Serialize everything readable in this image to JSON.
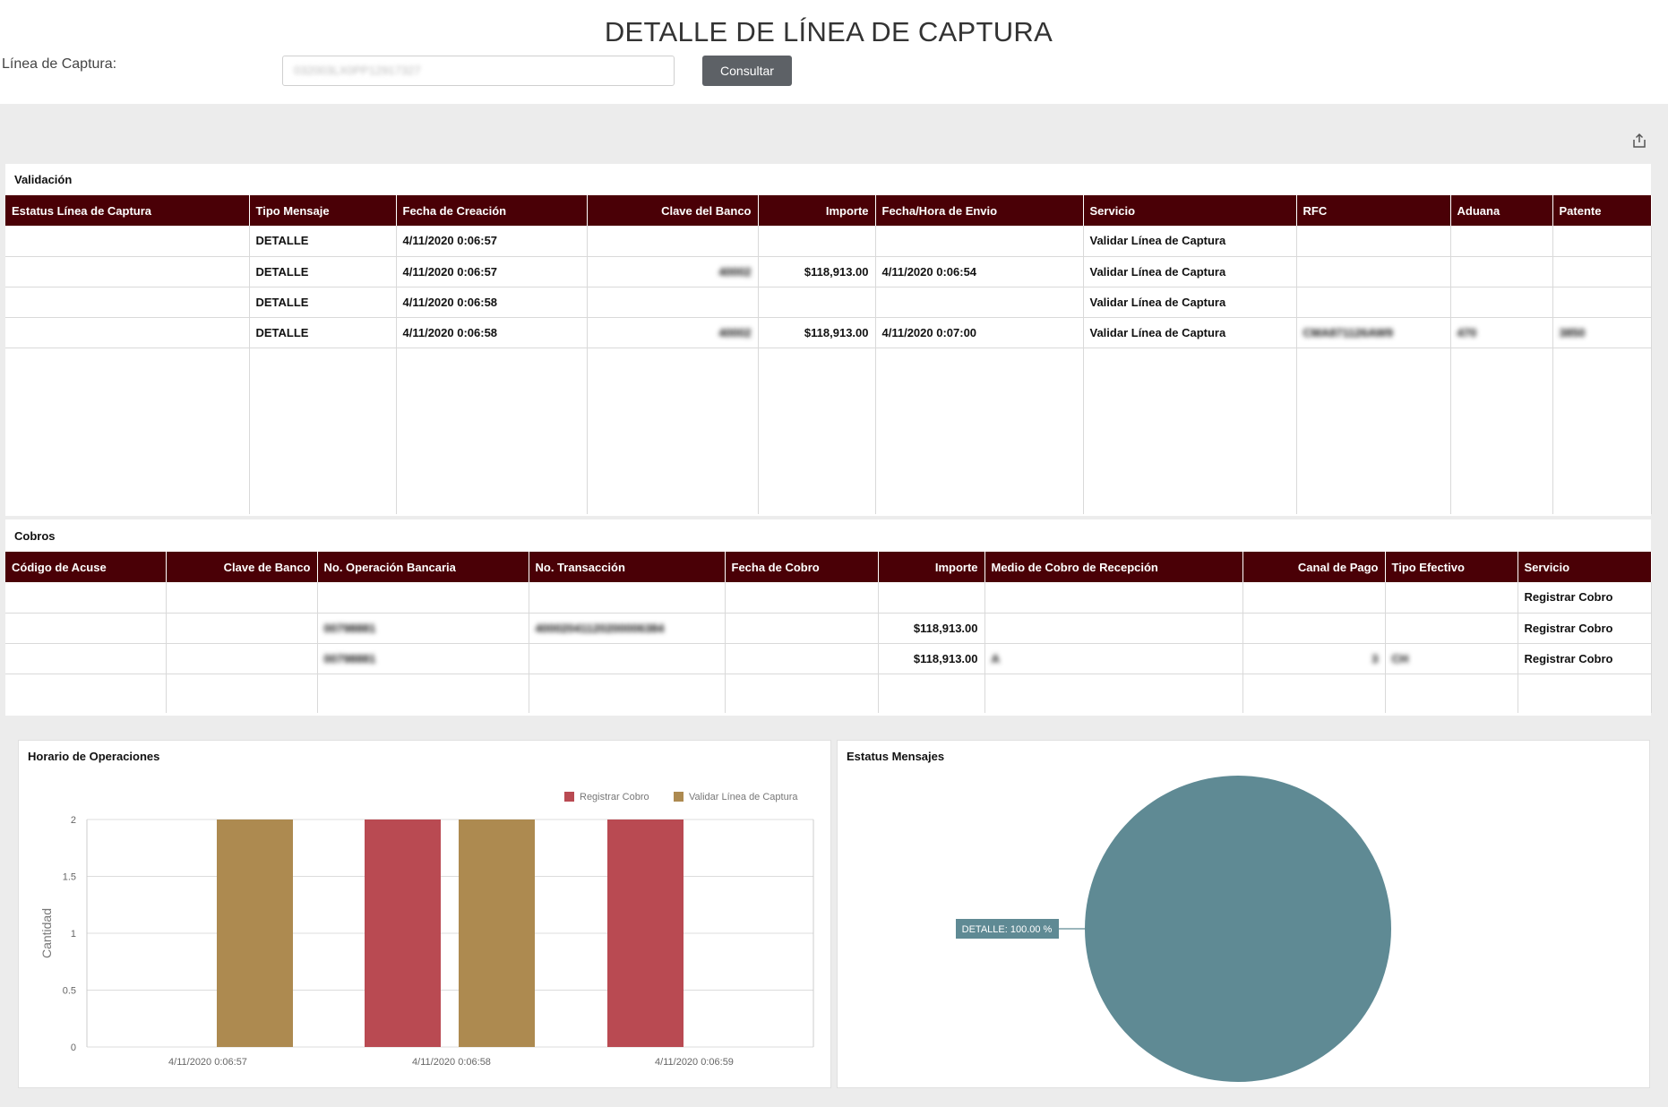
{
  "header": {
    "title": "DETALLE DE LÍNEA DE CAPTURA",
    "capture_label": "Línea de Captura:",
    "capture_value": "032003LX0PP12917327",
    "consult_label": "Consultar"
  },
  "validacion": {
    "title": "Validación",
    "columns": [
      "Estatus Línea de Captura",
      "Tipo Mensaje",
      "Fecha de Creación",
      "Clave del Banco",
      "Importe",
      "Fecha/Hora de Envio",
      "Servicio",
      "RFC",
      "Aduana",
      "Patente"
    ],
    "rows": [
      [
        "",
        "DETALLE",
        "4/11/2020 0:06:57",
        "",
        "",
        "",
        "Validar Línea de Captura",
        "",
        "",
        ""
      ],
      [
        "",
        "DETALLE",
        "4/11/2020 0:06:57",
        "40002",
        "$118,913.00",
        "4/11/2020 0:06:54",
        "Validar Línea de Captura",
        "",
        "",
        ""
      ],
      [
        "",
        "DETALLE",
        "4/11/2020 0:06:58",
        "",
        "",
        "",
        "Validar Línea de Captura",
        "",
        "",
        ""
      ],
      [
        "",
        "DETALLE",
        "4/11/2020 0:06:58",
        "40002",
        "$118,913.00",
        "4/11/2020 0:07:00",
        "Validar Línea de Captura",
        "CMA871126AW9",
        "470",
        "3850"
      ]
    ]
  },
  "cobros": {
    "title": "Cobros",
    "columns": [
      "Código de Acuse",
      "Clave de Banco",
      "No. Operación Bancaria",
      "No. Transacción",
      "Fecha de Cobro",
      "Importe",
      "Medio de Cobro de Recepción",
      "Canal de Pago",
      "Tipo Efectivo",
      "Servicio"
    ],
    "rows": [
      [
        "",
        "",
        "",
        "",
        "",
        "",
        "",
        "",
        "",
        "Registrar Cobro"
      ],
      [
        "",
        "",
        "00798881",
        "40002041120200006384",
        "",
        "$118,913.00",
        "",
        "",
        "",
        "Registrar Cobro"
      ],
      [
        "",
        "",
        "00798881",
        "",
        "",
        "$118,913.00",
        "A",
        "3",
        "CH",
        "Registrar Cobro"
      ]
    ]
  },
  "horario_chart": {
    "title": "Horario de Operaciones",
    "chart_data": {
      "type": "bar",
      "ylabel": "Cantidad",
      "ylim": [
        0,
        2
      ],
      "yticks": [
        "0",
        "0.5",
        "1",
        "1.5",
        "2"
      ],
      "categories": [
        "4/11/2020 0:06:57",
        "4/11/2020 0:06:58",
        "4/11/2020 0:06:59"
      ],
      "series": [
        {
          "name": "Registrar Cobro",
          "color": "#b94a52",
          "values": [
            0,
            2,
            2
          ]
        },
        {
          "name": "Validar Línea de Captura",
          "color": "#ad8a50",
          "values": [
            2,
            2,
            0
          ]
        }
      ],
      "legend": "top-right",
      "grid": true
    }
  },
  "estatus_chart": {
    "title": "Estatus Mensajes",
    "chart_data": {
      "type": "pie",
      "labels": [
        "DETALLE"
      ],
      "values": [
        100
      ],
      "colors": [
        "#5f8a94"
      ],
      "data_labels": [
        "DETALLE: 100.00 %"
      ]
    }
  }
}
